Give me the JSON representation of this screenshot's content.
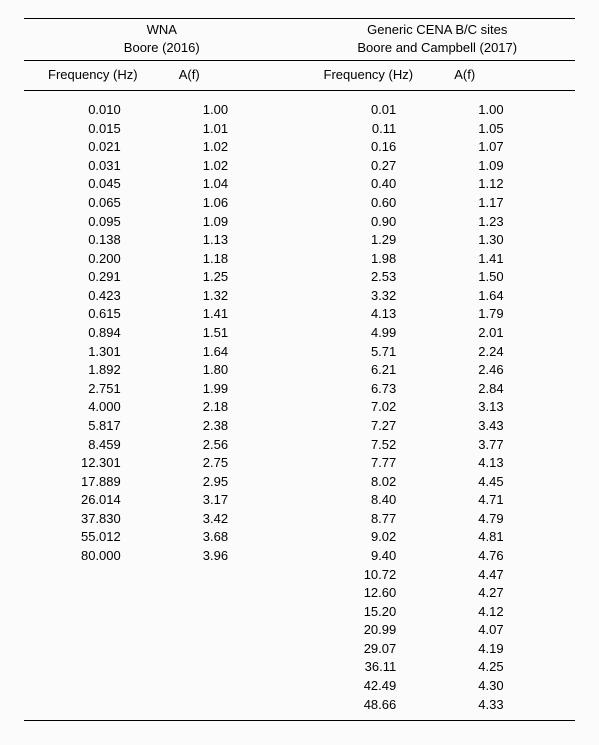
{
  "header": {
    "left": {
      "title": "WNA",
      "subtitle": "Boore (2016)"
    },
    "right": {
      "title": "Generic CENA B/C sites",
      "subtitle": "Boore and Campbell (2017)"
    }
  },
  "columns": {
    "freq": "Frequency (Hz)",
    "af": "A(f)"
  },
  "left_rows": [
    {
      "f": "0.010",
      "a": "1.00"
    },
    {
      "f": "0.015",
      "a": "1.01"
    },
    {
      "f": "0.021",
      "a": "1.02"
    },
    {
      "f": "0.031",
      "a": "1.02"
    },
    {
      "f": "0.045",
      "a": "1.04"
    },
    {
      "f": "0.065",
      "a": "1.06"
    },
    {
      "f": "0.095",
      "a": "1.09"
    },
    {
      "f": "0.138",
      "a": "1.13"
    },
    {
      "f": "0.200",
      "a": "1.18"
    },
    {
      "f": "0.291",
      "a": "1.25"
    },
    {
      "f": "0.423",
      "a": "1.32"
    },
    {
      "f": "0.615",
      "a": "1.41"
    },
    {
      "f": "0.894",
      "a": "1.51"
    },
    {
      "f": "1.301",
      "a": "1.64"
    },
    {
      "f": "1.892",
      "a": "1.80"
    },
    {
      "f": "2.751",
      "a": "1.99"
    },
    {
      "f": "4.000",
      "a": "2.18"
    },
    {
      "f": "5.817",
      "a": "2.38"
    },
    {
      "f": "8.459",
      "a": "2.56"
    },
    {
      "f": "12.301",
      "a": "2.75"
    },
    {
      "f": "17.889",
      "a": "2.95"
    },
    {
      "f": "26.014",
      "a": "3.17"
    },
    {
      "f": "37.830",
      "a": "3.42"
    },
    {
      "f": "55.012",
      "a": "3.68"
    },
    {
      "f": "80.000",
      "a": "3.96"
    }
  ],
  "right_rows": [
    {
      "f": "0.01",
      "a": "1.00"
    },
    {
      "f": "0.11",
      "a": "1.05"
    },
    {
      "f": "0.16",
      "a": "1.07"
    },
    {
      "f": "0.27",
      "a": "1.09"
    },
    {
      "f": "0.40",
      "a": "1.12"
    },
    {
      "f": "0.60",
      "a": "1.17"
    },
    {
      "f": "0.90",
      "a": "1.23"
    },
    {
      "f": "1.29",
      "a": "1.30"
    },
    {
      "f": "1.98",
      "a": "1.41"
    },
    {
      "f": "2.53",
      "a": "1.50"
    },
    {
      "f": "3.32",
      "a": "1.64"
    },
    {
      "f": "4.13",
      "a": "1.79"
    },
    {
      "f": "4.99",
      "a": "2.01"
    },
    {
      "f": "5.71",
      "a": "2.24"
    },
    {
      "f": "6.21",
      "a": "2.46"
    },
    {
      "f": "6.73",
      "a": "2.84"
    },
    {
      "f": "7.02",
      "a": "3.13"
    },
    {
      "f": "7.27",
      "a": "3.43"
    },
    {
      "f": "7.52",
      "a": "3.77"
    },
    {
      "f": "7.77",
      "a": "4.13"
    },
    {
      "f": "8.02",
      "a": "4.45"
    },
    {
      "f": "8.40",
      "a": "4.71"
    },
    {
      "f": "8.77",
      "a": "4.79"
    },
    {
      "f": "9.02",
      "a": "4.81"
    },
    {
      "f": "9.40",
      "a": "4.76"
    },
    {
      "f": "10.72",
      "a": "4.47"
    },
    {
      "f": "12.60",
      "a": "4.27"
    },
    {
      "f": "15.20",
      "a": "4.12"
    },
    {
      "f": "20.99",
      "a": "4.07"
    },
    {
      "f": "29.07",
      "a": "4.19"
    },
    {
      "f": "36.11",
      "a": "4.25"
    },
    {
      "f": "42.49",
      "a": "4.30"
    },
    {
      "f": "48.66",
      "a": "4.33"
    }
  ]
}
